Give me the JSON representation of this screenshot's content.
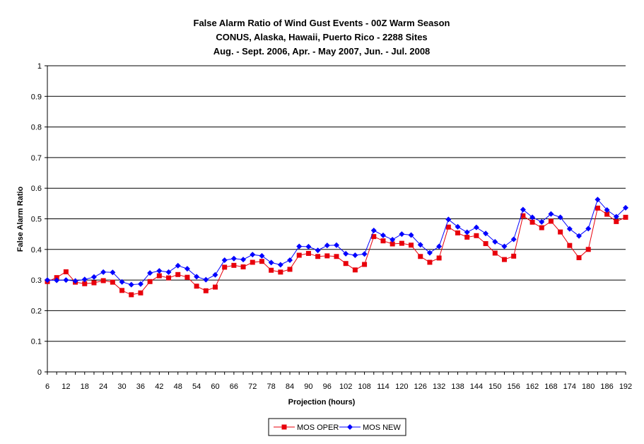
{
  "colors": {
    "oper": "#e8000b",
    "new": "#0000ff",
    "grid": "#000000"
  },
  "chart_data": {
    "type": "line",
    "title": [
      "False Alarm Ratio of Wind Gust Events - 00Z Warm Season",
      "CONUS, Alaska, Hawaii, Puerto Rico - 2288 Sites",
      "Aug. - Sept. 2006, Apr. - May 2007, Jun. - Jul. 2008"
    ],
    "xlabel": "Projection (hours)",
    "ylabel": "False Alarm Ratio",
    "xlim": [
      6,
      192
    ],
    "ylim": [
      0,
      1
    ],
    "grid": true,
    "legend_position": "bottom-center",
    "x_tick_labels": [
      "6",
      "12",
      "18",
      "24",
      "30",
      "36",
      "42",
      "48",
      "54",
      "60",
      "66",
      "72",
      "78",
      "84",
      "90",
      "96",
      "102",
      "108",
      "114",
      "120",
      "126",
      "132",
      "138",
      "144",
      "150",
      "156",
      "162",
      "168",
      "174",
      "180",
      "186",
      "192"
    ],
    "y_tick_labels": [
      "0",
      "0.1",
      "0.2",
      "0.3",
      "0.4",
      "0.5",
      "0.6",
      "0.7",
      "0.8",
      "0.9",
      "1"
    ],
    "x": [
      6,
      9,
      12,
      15,
      18,
      21,
      24,
      27,
      30,
      33,
      36,
      39,
      42,
      45,
      48,
      51,
      54,
      57,
      60,
      63,
      66,
      69,
      72,
      75,
      78,
      81,
      84,
      87,
      90,
      93,
      96,
      99,
      102,
      105,
      108,
      111,
      114,
      117,
      120,
      123,
      126,
      129,
      132,
      135,
      138,
      141,
      144,
      147,
      150,
      153,
      156,
      159,
      162,
      165,
      168,
      171,
      174,
      177,
      180,
      183,
      186,
      189,
      192
    ],
    "series": [
      {
        "name": "MOS OPER",
        "color_key": "oper",
        "marker": "square",
        "values": [
          0.295,
          0.308,
          0.327,
          0.293,
          0.288,
          0.291,
          0.298,
          0.293,
          0.266,
          0.252,
          0.258,
          0.295,
          0.314,
          0.307,
          0.318,
          0.309,
          0.28,
          0.265,
          0.277,
          0.342,
          0.348,
          0.343,
          0.358,
          0.361,
          0.332,
          0.326,
          0.335,
          0.381,
          0.387,
          0.377,
          0.379,
          0.377,
          0.354,
          0.333,
          0.351,
          0.442,
          0.428,
          0.418,
          0.42,
          0.414,
          0.377,
          0.358,
          0.372,
          0.473,
          0.454,
          0.44,
          0.445,
          0.419,
          0.388,
          0.367,
          0.378,
          0.51,
          0.489,
          0.471,
          0.492,
          0.457,
          0.413,
          0.373,
          0.4,
          0.535,
          0.515,
          0.491,
          0.505
        ]
      },
      {
        "name": "MOS NEW",
        "color_key": "new",
        "marker": "diamond",
        "values": [
          0.3,
          0.299,
          0.3,
          0.297,
          0.302,
          0.31,
          0.326,
          0.325,
          0.294,
          0.285,
          0.287,
          0.323,
          0.33,
          0.326,
          0.347,
          0.337,
          0.311,
          0.301,
          0.317,
          0.365,
          0.37,
          0.367,
          0.383,
          0.379,
          0.357,
          0.35,
          0.365,
          0.41,
          0.409,
          0.397,
          0.413,
          0.414,
          0.386,
          0.381,
          0.385,
          0.462,
          0.446,
          0.432,
          0.45,
          0.447,
          0.415,
          0.389,
          0.41,
          0.498,
          0.474,
          0.456,
          0.472,
          0.452,
          0.425,
          0.41,
          0.433,
          0.53,
          0.505,
          0.49,
          0.516,
          0.505,
          0.467,
          0.444,
          0.468,
          0.563,
          0.529,
          0.507,
          0.536
        ]
      }
    ]
  }
}
